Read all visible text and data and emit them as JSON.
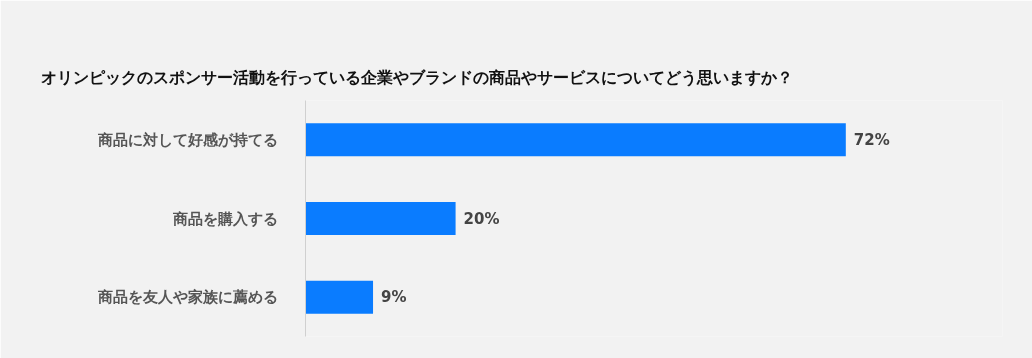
{
  "chart_data": {
    "type": "bar",
    "orientation": "horizontal",
    "title": "オリンピックのスポンサー活動を行っている企業やブランドの商品やサービスについてどう思いますか？",
    "categories": [
      "商品に対して好感が持てる",
      "商品を購入する",
      "商品を友人や家族に薦める"
    ],
    "values": [
      72,
      20,
      9
    ],
    "color": "#0a7cff",
    "value_labels": [
      "72%",
      "20%",
      "9%"
    ],
    "grid": false,
    "tick_labels": "y"
  }
}
